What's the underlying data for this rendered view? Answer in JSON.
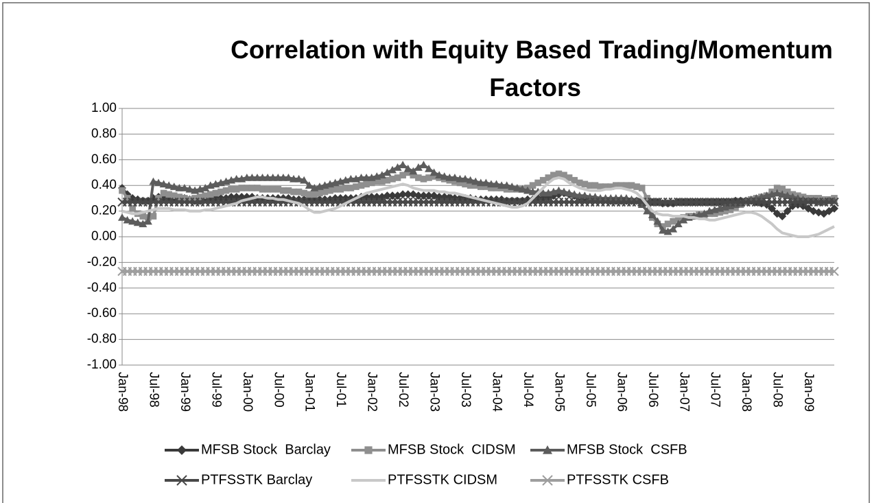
{
  "chart_data": {
    "type": "line",
    "title": "Correlation with Equity Based Trading/Momentum Factors",
    "categories": [
      "Jan-98",
      null,
      null,
      null,
      null,
      null,
      "Jul-98",
      null,
      null,
      null,
      null,
      null,
      "Jan-99",
      null,
      null,
      null,
      null,
      null,
      "Jul-99",
      null,
      null,
      null,
      null,
      null,
      "Jan-00",
      null,
      null,
      null,
      null,
      null,
      "Jul-00",
      null,
      null,
      null,
      null,
      null,
      "Jan-01",
      null,
      null,
      null,
      null,
      null,
      "Jul-01",
      null,
      null,
      null,
      null,
      null,
      "Jan-02",
      null,
      null,
      null,
      null,
      null,
      "Jul-02",
      null,
      null,
      null,
      null,
      null,
      "Jan-03",
      null,
      null,
      null,
      null,
      null,
      "Jul-03",
      null,
      null,
      null,
      null,
      null,
      "Jan-04",
      null,
      null,
      null,
      null,
      null,
      "Jul-04",
      null,
      null,
      null,
      null,
      null,
      "Jan-05",
      null,
      null,
      null,
      null,
      null,
      "Jul-05",
      null,
      null,
      null,
      null,
      null,
      "Jan-06",
      null,
      null,
      null,
      null,
      null,
      "Jul-06",
      null,
      null,
      null,
      null,
      null,
      "Jan-07",
      null,
      null,
      null,
      null,
      null,
      "Jul-07",
      null,
      null,
      null,
      null,
      null,
      "Jan-08",
      null,
      null,
      null,
      null,
      null,
      "Jul-08",
      null,
      null,
      null,
      null,
      null,
      "Jan-09",
      null,
      null,
      null,
      null,
      null
    ],
    "ylim": [
      -1,
      1
    ],
    "yticks": [
      {
        "value": -1,
        "label": "-1.00"
      },
      {
        "value": -0.8,
        "label": "-0.80"
      },
      {
        "value": -0.6,
        "label": "-0.60"
      },
      {
        "value": -0.4,
        "label": "-0.40"
      },
      {
        "value": -0.2,
        "label": "-0.20"
      },
      {
        "value": 0,
        "label": "0.00"
      },
      {
        "value": 0.2,
        "label": "0.20"
      },
      {
        "value": 0.4,
        "label": "0.40"
      },
      {
        "value": 0.6,
        "label": "0.60"
      },
      {
        "value": 0.8,
        "label": "0.80"
      },
      {
        "value": 1,
        "label": "1.00"
      }
    ],
    "grid": true,
    "legend": "bottom",
    "series": [
      {
        "name": "MFSB Stock  Barclay",
        "color": "#3a3a3a",
        "marker": "diamond",
        "values": [
          0.38,
          0.33,
          0.3,
          0.29,
          0.28,
          0.28,
          0.3,
          0.31,
          0.3,
          0.29,
          0.29,
          0.3,
          0.3,
          0.29,
          0.28,
          0.28,
          0.29,
          0.29,
          0.3,
          0.3,
          0.3,
          0.31,
          0.31,
          0.31,
          0.31,
          0.31,
          0.3,
          0.3,
          0.3,
          0.3,
          0.3,
          0.3,
          0.3,
          0.29,
          0.29,
          0.29,
          0.29,
          0.29,
          0.29,
          0.29,
          0.29,
          0.3,
          0.3,
          0.3,
          0.3,
          0.3,
          0.31,
          0.31,
          0.31,
          0.31,
          0.31,
          0.32,
          0.32,
          0.32,
          0.33,
          0.33,
          0.33,
          0.32,
          0.32,
          0.32,
          0.32,
          0.31,
          0.31,
          0.31,
          0.3,
          0.3,
          0.3,
          0.3,
          0.29,
          0.29,
          0.29,
          0.29,
          0.29,
          0.29,
          0.28,
          0.28,
          0.28,
          0.28,
          0.29,
          0.29,
          0.3,
          0.3,
          0.31,
          0.32,
          0.33,
          0.34,
          0.33,
          0.32,
          0.31,
          0.3,
          0.3,
          0.29,
          0.29,
          0.29,
          0.28,
          0.28,
          0.28,
          0.28,
          0.28,
          0.28,
          0.28,
          0.27,
          0.27,
          0.27,
          0.26,
          0.26,
          0.26,
          0.27,
          0.27,
          0.27,
          0.27,
          0.27,
          0.27,
          0.27,
          0.27,
          0.27,
          0.27,
          0.27,
          0.28,
          0.28,
          0.28,
          0.28,
          0.27,
          0.26,
          0.25,
          0.22,
          0.18,
          0.16,
          0.2,
          0.24,
          0.25,
          0.24,
          0.22,
          0.2,
          0.19,
          0.18,
          0.2,
          0.22
        ]
      },
      {
        "name": "MFSB Stock  CIDSM",
        "color": "#8f8f8f",
        "marker": "square",
        "values": [
          0.36,
          0.3,
          0.22,
          0.18,
          0.16,
          0.15,
          0.16,
          0.3,
          0.34,
          0.33,
          0.32,
          0.31,
          0.3,
          0.29,
          0.3,
          0.31,
          0.32,
          0.33,
          0.34,
          0.35,
          0.36,
          0.37,
          0.37,
          0.38,
          0.38,
          0.38,
          0.38,
          0.37,
          0.37,
          0.37,
          0.37,
          0.36,
          0.36,
          0.35,
          0.35,
          0.34,
          0.33,
          0.33,
          0.34,
          0.35,
          0.36,
          0.37,
          0.37,
          0.38,
          0.38,
          0.39,
          0.4,
          0.41,
          0.42,
          0.43,
          0.43,
          0.44,
          0.45,
          0.46,
          0.48,
          0.5,
          0.48,
          0.46,
          0.45,
          0.46,
          0.47,
          0.46,
          0.45,
          0.44,
          0.43,
          0.42,
          0.41,
          0.4,
          0.4,
          0.39,
          0.39,
          0.38,
          0.38,
          0.38,
          0.37,
          0.37,
          0.37,
          0.37,
          0.38,
          0.4,
          0.42,
          0.44,
          0.46,
          0.48,
          0.49,
          0.48,
          0.46,
          0.44,
          0.42,
          0.41,
          0.4,
          0.4,
          0.39,
          0.39,
          0.39,
          0.4,
          0.4,
          0.4,
          0.4,
          0.39,
          0.38,
          0.3,
          0.15,
          0.1,
          0.08,
          0.1,
          0.12,
          0.14,
          0.15,
          0.16,
          0.16,
          0.17,
          0.17,
          0.18,
          0.18,
          0.19,
          0.2,
          0.21,
          0.23,
          0.25,
          0.27,
          0.29,
          0.3,
          0.31,
          0.32,
          0.35,
          0.38,
          0.37,
          0.35,
          0.33,
          0.32,
          0.31,
          0.3,
          0.3,
          0.3,
          0.29,
          0.29,
          0.3
        ]
      },
      {
        "name": "MFSB Stock  CSFB",
        "color": "#5c5c5c",
        "marker": "triangle",
        "values": [
          0.15,
          0.13,
          0.12,
          0.11,
          0.1,
          0.12,
          0.43,
          0.42,
          0.41,
          0.4,
          0.39,
          0.38,
          0.38,
          0.37,
          0.36,
          0.37,
          0.38,
          0.4,
          0.41,
          0.42,
          0.43,
          0.44,
          0.45,
          0.45,
          0.46,
          0.46,
          0.46,
          0.46,
          0.46,
          0.46,
          0.46,
          0.46,
          0.46,
          0.45,
          0.45,
          0.44,
          0.4,
          0.38,
          0.39,
          0.4,
          0.41,
          0.42,
          0.43,
          0.44,
          0.45,
          0.45,
          0.46,
          0.46,
          0.46,
          0.47,
          0.48,
          0.5,
          0.52,
          0.54,
          0.56,
          0.53,
          0.51,
          0.54,
          0.56,
          0.53,
          0.5,
          0.48,
          0.47,
          0.46,
          0.46,
          0.45,
          0.45,
          0.44,
          0.43,
          0.42,
          0.42,
          0.41,
          0.41,
          0.4,
          0.4,
          0.39,
          0.38,
          0.37,
          0.36,
          0.35,
          0.35,
          0.34,
          0.34,
          0.35,
          0.36,
          0.35,
          0.34,
          0.33,
          0.32,
          0.32,
          0.31,
          0.31,
          0.3,
          0.3,
          0.3,
          0.3,
          0.3,
          0.3,
          0.29,
          0.28,
          0.25,
          0.2,
          0.17,
          0.12,
          0.05,
          0.04,
          0.06,
          0.1,
          0.13,
          0.15,
          0.16,
          0.17,
          0.18,
          0.2,
          0.21,
          0.22,
          0.23,
          0.24,
          0.25,
          0.26,
          0.28,
          0.29,
          0.3,
          0.31,
          0.32,
          0.33,
          0.34,
          0.33,
          0.32,
          0.31,
          0.3,
          0.29,
          0.28,
          0.28,
          0.27,
          0.27,
          0.28,
          0.28
        ]
      },
      {
        "name": "PTFSSTK Barclay",
        "color": "#484848",
        "marker": "x",
        "values": [
          0.27,
          0.27,
          0.27,
          0.27,
          0.27,
          0.27,
          0.27,
          0.27,
          0.27,
          0.27,
          0.27,
          0.27,
          0.27,
          0.27,
          0.27,
          0.27,
          0.27,
          0.27,
          0.27,
          0.27,
          0.27,
          0.27,
          0.27,
          0.27,
          0.27,
          0.27,
          0.27,
          0.27,
          0.27,
          0.27,
          0.27,
          0.27,
          0.27,
          0.27,
          0.27,
          0.27,
          0.27,
          0.27,
          0.27,
          0.27,
          0.27,
          0.27,
          0.27,
          0.27,
          0.27,
          0.27,
          0.27,
          0.27,
          0.27,
          0.27,
          0.27,
          0.27,
          0.27,
          0.27,
          0.27,
          0.27,
          0.27,
          0.27,
          0.27,
          0.27,
          0.27,
          0.27,
          0.27,
          0.27,
          0.27,
          0.27,
          0.27,
          0.27,
          0.27,
          0.27,
          0.27,
          0.27,
          0.27,
          0.27,
          0.27,
          0.27,
          0.27,
          0.27,
          0.27,
          0.27,
          0.27,
          0.27,
          0.27,
          0.27,
          0.27,
          0.27,
          0.27,
          0.27,
          0.27,
          0.27,
          0.27,
          0.27,
          0.27,
          0.27,
          0.27,
          0.27,
          0.27,
          0.27,
          0.27,
          0.27,
          0.27,
          0.27,
          0.27,
          0.27,
          0.27,
          0.27,
          0.27,
          0.27,
          0.27,
          0.27,
          0.27,
          0.27,
          0.27,
          0.27,
          0.27,
          0.27,
          0.27,
          0.27,
          0.27,
          0.27,
          0.27,
          0.27,
          0.27,
          0.27,
          0.27,
          0.27,
          0.27,
          0.27,
          0.27,
          0.27,
          0.27,
          0.27,
          0.27,
          0.27,
          0.27,
          0.27,
          0.27,
          0.27
        ]
      },
      {
        "name": "PTFSSTK CIDSM",
        "color": "#c8c8c8",
        "marker": "none",
        "values": [
          0.2,
          0.19,
          0.18,
          0.18,
          0.19,
          0.2,
          0.21,
          0.22,
          0.22,
          0.22,
          0.21,
          0.21,
          0.21,
          0.2,
          0.2,
          0.2,
          0.21,
          0.21,
          0.22,
          0.23,
          0.24,
          0.25,
          0.26,
          0.28,
          0.29,
          0.3,
          0.31,
          0.31,
          0.3,
          0.3,
          0.29,
          0.29,
          0.28,
          0.27,
          0.26,
          0.24,
          0.21,
          0.19,
          0.19,
          0.2,
          0.21,
          0.22,
          0.24,
          0.26,
          0.28,
          0.3,
          0.32,
          0.34,
          0.35,
          0.36,
          0.37,
          0.38,
          0.39,
          0.4,
          0.41,
          0.4,
          0.38,
          0.37,
          0.36,
          0.36,
          0.36,
          0.35,
          0.35,
          0.34,
          0.34,
          0.33,
          0.32,
          0.31,
          0.3,
          0.29,
          0.28,
          0.27,
          0.26,
          0.25,
          0.24,
          0.23,
          0.23,
          0.24,
          0.26,
          0.3,
          0.34,
          0.38,
          0.42,
          0.45,
          0.46,
          0.45,
          0.42,
          0.4,
          0.38,
          0.37,
          0.36,
          0.36,
          0.36,
          0.37,
          0.37,
          0.38,
          0.38,
          0.37,
          0.36,
          0.34,
          0.3,
          0.25,
          0.2,
          0.18,
          0.17,
          0.17,
          0.16,
          0.16,
          0.16,
          0.15,
          0.15,
          0.14,
          0.14,
          0.13,
          0.13,
          0.14,
          0.15,
          0.16,
          0.17,
          0.18,
          0.19,
          0.19,
          0.18,
          0.16,
          0.13,
          0.1,
          0.06,
          0.03,
          0.02,
          0.01,
          0.0,
          0.0,
          0.0,
          0.01,
          0.02,
          0.04,
          0.06,
          0.08
        ]
      },
      {
        "name": "PTFSSTK CSFB",
        "color": "#9e9e9e",
        "marker": "x",
        "values": [
          -0.27,
          -0.27,
          -0.27,
          -0.27,
          -0.27,
          -0.27,
          -0.27,
          -0.27,
          -0.27,
          -0.27,
          -0.27,
          -0.27,
          -0.27,
          -0.27,
          -0.27,
          -0.27,
          -0.27,
          -0.27,
          -0.27,
          -0.27,
          -0.27,
          -0.27,
          -0.27,
          -0.27,
          -0.27,
          -0.27,
          -0.27,
          -0.27,
          -0.27,
          -0.27,
          -0.27,
          -0.27,
          -0.27,
          -0.27,
          -0.27,
          -0.27,
          -0.27,
          -0.27,
          -0.27,
          -0.27,
          -0.27,
          -0.27,
          -0.27,
          -0.27,
          -0.27,
          -0.27,
          -0.27,
          -0.27,
          -0.27,
          -0.27,
          -0.27,
          -0.27,
          -0.27,
          -0.27,
          -0.27,
          -0.27,
          -0.27,
          -0.27,
          -0.27,
          -0.27,
          -0.27,
          -0.27,
          -0.27,
          -0.27,
          -0.27,
          -0.27,
          -0.27,
          -0.27,
          -0.27,
          -0.27,
          -0.27,
          -0.27,
          -0.27,
          -0.27,
          -0.27,
          -0.27,
          -0.27,
          -0.27,
          -0.27,
          -0.27,
          -0.27,
          -0.27,
          -0.27,
          -0.27,
          -0.27,
          -0.27,
          -0.27,
          -0.27,
          -0.27,
          -0.27,
          -0.27,
          -0.27,
          -0.27,
          -0.27,
          -0.27,
          -0.27,
          -0.27,
          -0.27,
          -0.27,
          -0.27,
          -0.27,
          -0.27,
          -0.27,
          -0.27,
          -0.27,
          -0.27,
          -0.27,
          -0.27,
          -0.27,
          -0.27,
          -0.27,
          -0.27,
          -0.27,
          -0.27,
          -0.27,
          -0.27,
          -0.27,
          -0.27,
          -0.27,
          -0.27,
          -0.27,
          -0.27,
          -0.27,
          -0.27,
          -0.27,
          -0.27,
          -0.27,
          -0.27,
          -0.27,
          -0.27,
          -0.27,
          -0.27,
          -0.27,
          -0.27,
          -0.27,
          -0.27,
          -0.27,
          -0.27
        ]
      }
    ]
  }
}
